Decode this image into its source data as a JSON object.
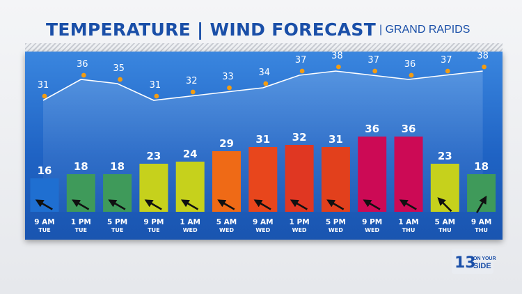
{
  "header": {
    "title": "TEMPERATURE | WIND FORECAST",
    "subtitle": "| GRAND RAPIDS"
  },
  "logo": {
    "text": "13 ON YOUR SIDE"
  },
  "colors": {
    "panel_top": "#3a86df",
    "panel_bottom": "#1a55b0",
    "title": "#1a4fa8",
    "temp_dot": "#f39c12",
    "temp_line": "#ffffff",
    "wind_arrow": "#111111"
  },
  "chart_data": {
    "type": "bar",
    "title": "TEMPERATURE | WIND FORECAST",
    "subtitle": "GRAND RAPIDS",
    "categories": [
      {
        "time": "9 AM",
        "day": "TUE"
      },
      {
        "time": "1 PM",
        "day": "TUE"
      },
      {
        "time": "5 PM",
        "day": "TUE"
      },
      {
        "time": "9 PM",
        "day": "TUE"
      },
      {
        "time": "1 AM",
        "day": "WED"
      },
      {
        "time": "5 AM",
        "day": "WED"
      },
      {
        "time": "9 AM",
        "day": "WED"
      },
      {
        "time": "1 PM",
        "day": "WED"
      },
      {
        "time": "5 PM",
        "day": "WED"
      },
      {
        "time": "9 PM",
        "day": "WED"
      },
      {
        "time": "1 AM",
        "day": "THU"
      },
      {
        "time": "5 AM",
        "day": "THU"
      },
      {
        "time": "9 AM",
        "day": "THU"
      }
    ],
    "series": [
      {
        "type": "bar",
        "values": [
          16,
          18,
          18,
          23,
          24,
          29,
          31,
          32,
          31,
          36,
          36,
          23,
          18
        ],
        "colors": [
          "#1f6fd1",
          "#3f9a5a",
          "#3f9a5a",
          "#c6d11c",
          "#c6d11c",
          "#ef6a16",
          "#e8461c",
          "#e03722",
          "#e2401c",
          "#cc0a55",
          "#cc0a55",
          "#c6d11c",
          "#3f9a5a"
        ]
      },
      {
        "type": "line",
        "values": [
          31,
          36,
          35,
          31,
          32,
          33,
          34,
          37,
          38,
          37,
          36,
          37,
          38
        ]
      }
    ],
    "wind_direction_deg": [
      120,
      120,
      120,
      120,
      120,
      120,
      120,
      120,
      120,
      120,
      120,
      135,
      210
    ],
    "ylim_bars": [
      0,
      40
    ],
    "ylim_line": [
      25,
      40
    ]
  }
}
